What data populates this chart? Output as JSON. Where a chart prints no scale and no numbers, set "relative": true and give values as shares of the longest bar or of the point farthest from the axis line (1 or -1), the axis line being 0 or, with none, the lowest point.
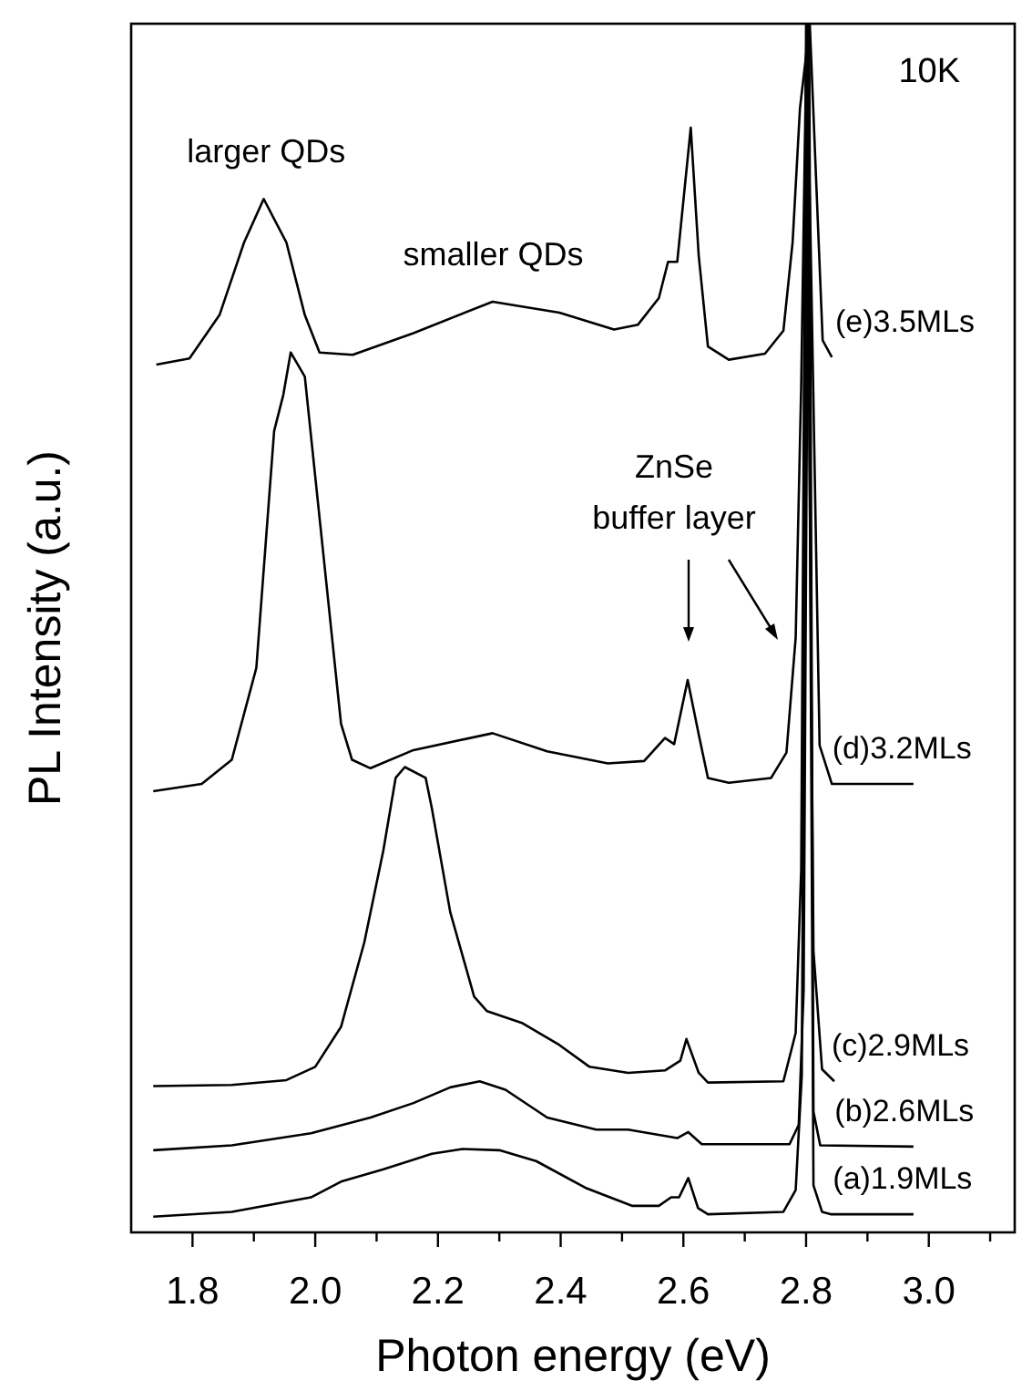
{
  "chart_data": {
    "type": "line",
    "relative": true,
    "xlabel": "Photon energy (eV)",
    "ylabel": "PL Intensity (a.u.)",
    "xlim": [
      1.7,
      3.14
    ],
    "xticks": [
      1.8,
      {
        "value": 1.9,
        "label": null
      },
      {
        "value": 2,
        "label": "2.0"
      },
      {
        "value": 2.1,
        "label": null
      },
      2.2,
      {
        "value": 2.3,
        "label": null
      },
      2.4,
      {
        "value": 2.5,
        "label": null
      },
      2.6,
      {
        "value": 2.7,
        "label": null
      },
      2.8,
      {
        "value": 2.9,
        "label": null
      },
      {
        "value": 3,
        "label": "3.0"
      },
      {
        "value": 3.1,
        "label": null
      }
    ],
    "annotations": [
      "10K",
      {
        "text": "larger QDs",
        "x": 1.92,
        "y": 0.855
      },
      {
        "text": "smaller QDs",
        "x": 2.29,
        "y": 0.77
      },
      "ZnSe\nbuffer layer"
    ],
    "series": [
      {
        "name": "(a)1.9MLs",
        "color": "#000000",
        "x": [
          1.736,
          1.864,
          1.993,
          2.042,
          2.11,
          2.19,
          2.24,
          2.3,
          2.36,
          2.44,
          2.516,
          2.56,
          2.58,
          2.593,
          2.608,
          2.624,
          2.64,
          2.763,
          2.783,
          2.793,
          2.802,
          2.812,
          2.826,
          2.84,
          2.975
        ],
        "values": [
          0.013,
          0.017,
          0.029,
          0.042,
          0.052,
          0.065,
          0.069,
          0.068,
          0.059,
          0.037,
          0.022,
          0.022,
          0.029,
          0.029,
          0.045,
          0.02,
          0.015,
          0.017,
          0.035,
          0.13,
          1.0,
          0.039,
          0.017,
          0.015,
          0.015
        ]
      },
      {
        "name": "(b)2.6MLs",
        "color": "#000000",
        "x": [
          1.736,
          1.864,
          1.993,
          2.09,
          2.16,
          2.22,
          2.268,
          2.31,
          2.378,
          2.458,
          2.51,
          2.59,
          2.608,
          2.63,
          2.773,
          2.788,
          2.796,
          2.805,
          2.812,
          2.823,
          2.975
        ],
        "values": [
          0.068,
          0.072,
          0.082,
          0.095,
          0.107,
          0.12,
          0.125,
          0.118,
          0.095,
          0.085,
          0.085,
          0.078,
          0.083,
          0.073,
          0.073,
          0.089,
          0.2,
          1.0,
          0.1,
          0.072,
          0.071
        ]
      },
      {
        "name": "(c)2.9MLs",
        "color": "#000000",
        "x": [
          1.736,
          1.864,
          1.953,
          2.0,
          2.042,
          2.08,
          2.111,
          2.131,
          2.146,
          2.18,
          2.19,
          2.22,
          2.259,
          2.28,
          2.338,
          2.398,
          2.447,
          2.51,
          2.57,
          2.595,
          2.605,
          2.625,
          2.64,
          2.763,
          2.783,
          2.792,
          2.8,
          2.812,
          2.826,
          2.846
        ],
        "values": [
          0.121,
          0.122,
          0.126,
          0.137,
          0.17,
          0.24,
          0.316,
          0.376,
          0.385,
          0.376,
          0.351,
          0.265,
          0.195,
          0.183,
          0.173,
          0.155,
          0.137,
          0.132,
          0.134,
          0.142,
          0.16,
          0.132,
          0.124,
          0.125,
          0.165,
          0.3,
          1.0,
          0.233,
          0.135,
          0.125
        ]
      },
      {
        "name": "(d)3.2MLs",
        "color": "#000000",
        "x": [
          1.736,
          1.815,
          1.864,
          1.904,
          1.933,
          1.948,
          1.96,
          1.983,
          2.012,
          2.042,
          2.06,
          2.09,
          2.16,
          2.289,
          2.378,
          2.477,
          2.536,
          2.57,
          2.585,
          2.607,
          2.625,
          2.64,
          2.674,
          2.743,
          2.768,
          2.783,
          2.792,
          2.801,
          2.822,
          2.842,
          2.975
        ],
        "values": [
          0.365,
          0.371,
          0.391,
          0.467,
          0.663,
          0.693,
          0.728,
          0.708,
          0.567,
          0.421,
          0.391,
          0.384,
          0.399,
          0.413,
          0.398,
          0.388,
          0.39,
          0.409,
          0.404,
          0.457,
          0.412,
          0.376,
          0.372,
          0.376,
          0.397,
          0.492,
          0.7,
          1.0,
          0.403,
          0.371,
          0.371
        ]
      },
      {
        "name": "(e)3.5MLs",
        "color": "#000000",
        "x": [
          1.741,
          1.795,
          1.844,
          1.884,
          1.916,
          1.953,
          1.983,
          2.007,
          2.061,
          2.16,
          2.289,
          2.398,
          2.487,
          2.526,
          2.56,
          2.575,
          2.59,
          2.612,
          2.625,
          2.64,
          2.674,
          2.733,
          2.763,
          2.778,
          2.79,
          2.806,
          2.827,
          2.842
        ],
        "values": [
          0.718,
          0.723,
          0.759,
          0.819,
          0.855,
          0.819,
          0.759,
          0.728,
          0.726,
          0.744,
          0.77,
          0.761,
          0.747,
          0.751,
          0.773,
          0.803,
          0.803,
          0.914,
          0.808,
          0.733,
          0.722,
          0.727,
          0.746,
          0.819,
          0.93,
          1.0,
          0.738,
          0.724
        ]
      }
    ]
  }
}
